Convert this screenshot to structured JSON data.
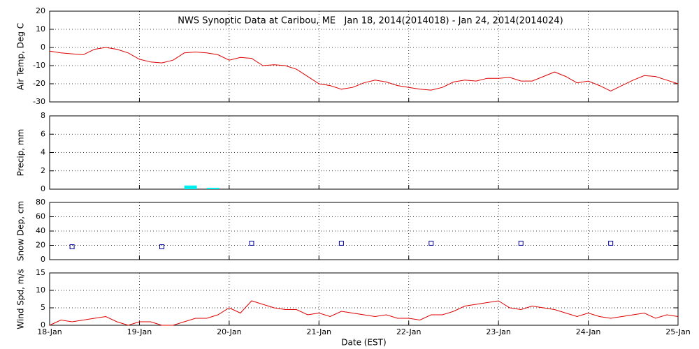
{
  "chart_data": [
    {
      "type": "line",
      "title": "NWS Synoptic Data at Caribou, ME   Jan 18, 2014(2014018) - Jan 24, 2014(2014024)",
      "ylabel": "Air Temp, Deg C",
      "color": "#dd0000",
      "grid": true,
      "xlim": [
        0,
        7
      ],
      "xticks": [
        0,
        1,
        2,
        3,
        4,
        5,
        6,
        7
      ],
      "ylim": [
        -30,
        20
      ],
      "yticks": [
        -30,
        -20,
        -10,
        0,
        10,
        20
      ],
      "x": [
        0,
        0.125,
        0.25,
        0.375,
        0.5,
        0.625,
        0.75,
        0.875,
        1,
        1.125,
        1.25,
        1.375,
        1.5,
        1.625,
        1.75,
        1.875,
        2,
        2.125,
        2.25,
        2.375,
        2.5,
        2.625,
        2.75,
        2.875,
        3,
        3.125,
        3.25,
        3.375,
        3.5,
        3.625,
        3.75,
        3.875,
        4,
        4.125,
        4.25,
        4.375,
        4.5,
        4.625,
        4.75,
        4.875,
        5,
        5.125,
        5.25,
        5.375,
        5.5,
        5.625,
        5.75,
        5.875,
        6,
        6.125,
        6.25,
        6.375,
        6.5,
        6.625,
        6.75,
        6.875,
        7
      ],
      "values": [
        -2,
        -3,
        -3.5,
        -4,
        -1,
        0,
        -1,
        -3,
        -6.5,
        -8,
        -8.5,
        -7,
        -3,
        -2.5,
        -3,
        -4,
        -7,
        -5.5,
        -6,
        -10,
        -9.5,
        -10,
        -12,
        -16,
        -20,
        -21,
        -23,
        -22,
        -19.5,
        -18,
        -19,
        -21,
        -22,
        -23,
        -23.5,
        -22,
        -19,
        -18,
        -18.5,
        -17,
        -17,
        -16.5,
        -18.5,
        -18.5,
        -16,
        -13.5,
        -16,
        -19.5,
        -18.5,
        -21,
        -24,
        -21,
        -18,
        -15.5,
        -16,
        -18,
        -20
      ]
    },
    {
      "type": "bar",
      "ylabel": "Precip, mm",
      "color": "#00eeee",
      "grid": true,
      "xlim": [
        0,
        7
      ],
      "xticks": [
        0,
        1,
        2,
        3,
        4,
        5,
        6,
        7
      ],
      "ylim": [
        0,
        8
      ],
      "yticks": [
        0,
        2,
        4,
        6,
        8
      ],
      "x": [
        1.5,
        1.75
      ],
      "values": [
        0.4,
        0.15
      ]
    },
    {
      "type": "scatter",
      "ylabel": "Snow Dep, cm",
      "color": "#000099",
      "grid": true,
      "xlim": [
        0,
        7
      ],
      "xticks": [
        0,
        1,
        2,
        3,
        4,
        5,
        6,
        7
      ],
      "ylim": [
        0,
        80
      ],
      "yticks": [
        0,
        20,
        40,
        60,
        80
      ],
      "x": [
        0.25,
        1.25,
        2.25,
        3.25,
        4.25,
        5.25,
        6.25
      ],
      "values": [
        18,
        18,
        23,
        23,
        23,
        23,
        23
      ]
    },
    {
      "type": "line",
      "ylabel": "Wind Spd, m/s",
      "xlabel": "Date (EST)",
      "color": "#dd0000",
      "grid": true,
      "xlim": [
        0,
        7
      ],
      "xticks": [
        {
          "value": 0,
          "label": "18-Jan"
        },
        {
          "value": 1,
          "label": "19-Jan"
        },
        {
          "value": 2,
          "label": "20-Jan"
        },
        {
          "value": 3,
          "label": "21-Jan"
        },
        {
          "value": 4,
          "label": "22-Jan"
        },
        {
          "value": 5,
          "label": "23-Jan"
        },
        {
          "value": 6,
          "label": "24-Jan"
        },
        {
          "value": 7,
          "label": "25-Jan"
        }
      ],
      "ylim": [
        0,
        15
      ],
      "yticks": [
        0,
        5,
        10,
        15
      ],
      "x": [
        0,
        0.125,
        0.25,
        0.375,
        0.5,
        0.625,
        0.75,
        0.875,
        1,
        1.125,
        1.25,
        1.375,
        1.5,
        1.625,
        1.75,
        1.875,
        2,
        2.125,
        2.25,
        2.375,
        2.5,
        2.625,
        2.75,
        2.875,
        3,
        3.125,
        3.25,
        3.375,
        3.5,
        3.625,
        3.75,
        3.875,
        4,
        4.125,
        4.25,
        4.375,
        4.5,
        4.625,
        4.75,
        4.875,
        5,
        5.125,
        5.25,
        5.375,
        5.5,
        5.625,
        5.75,
        5.875,
        6,
        6.125,
        6.25,
        6.375,
        6.5,
        6.625,
        6.75,
        6.875,
        7
      ],
      "values": [
        0,
        1.5,
        1,
        1.5,
        2,
        2.5,
        1,
        0,
        1,
        1,
        0,
        0,
        1,
        2,
        2,
        3,
        5,
        3.5,
        7,
        6,
        5,
        4.5,
        4.5,
        3,
        3.5,
        2.5,
        4,
        3.5,
        3,
        2.5,
        3,
        2,
        2,
        1.5,
        3,
        3,
        4,
        5.5,
        6,
        6.5,
        7,
        5,
        4.5,
        5.5,
        5,
        4.5,
        3.5,
        2.5,
        3.5,
        2.5,
        2,
        2.5,
        3,
        3.5,
        2,
        3,
        2.5
      ]
    }
  ]
}
